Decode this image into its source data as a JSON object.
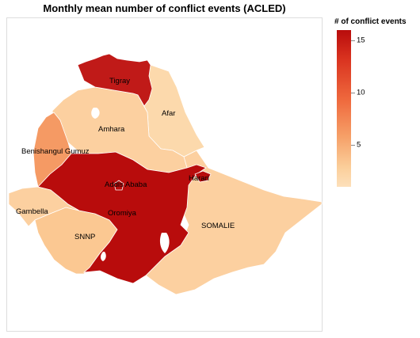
{
  "title": "Monthly mean number of conflict events (ACLED)",
  "legend": {
    "title": "# of conflict events",
    "ticks": [
      {
        "label": "15",
        "value": 15
      },
      {
        "label": "10",
        "value": 10
      },
      {
        "label": "5",
        "value": 5
      }
    ],
    "range": [
      1,
      16
    ],
    "colors": [
      "#fde0bb",
      "#b80c0c"
    ]
  },
  "regions": [
    {
      "name": "Tigray",
      "label": "Tigray",
      "color": "#c01a18"
    },
    {
      "name": "Afar",
      "label": "Afar",
      "color": "#fcd9ac"
    },
    {
      "name": "Amhara",
      "label": "Amhara",
      "color": "#fcd0a0"
    },
    {
      "name": "Benishangul Gumuz",
      "label": "Benishangul Gumuz",
      "color": "#f59a64"
    },
    {
      "name": "Addis Ababa",
      "label": "Addis Ababa",
      "color": "#b80c0c"
    },
    {
      "name": "Harari",
      "label": "Harari",
      "color": "#b80c0c"
    },
    {
      "name": "Gambella",
      "label": "Gambella",
      "color": "#fcd0a0"
    },
    {
      "name": "Oromiya",
      "label": "Oromiya",
      "color": "#b80c0c"
    },
    {
      "name": "SNNP",
      "label": "SNNP",
      "color": "#fbc892"
    },
    {
      "name": "Somali",
      "label": "SOMALIE",
      "color": "#fcd0a0"
    }
  ]
}
